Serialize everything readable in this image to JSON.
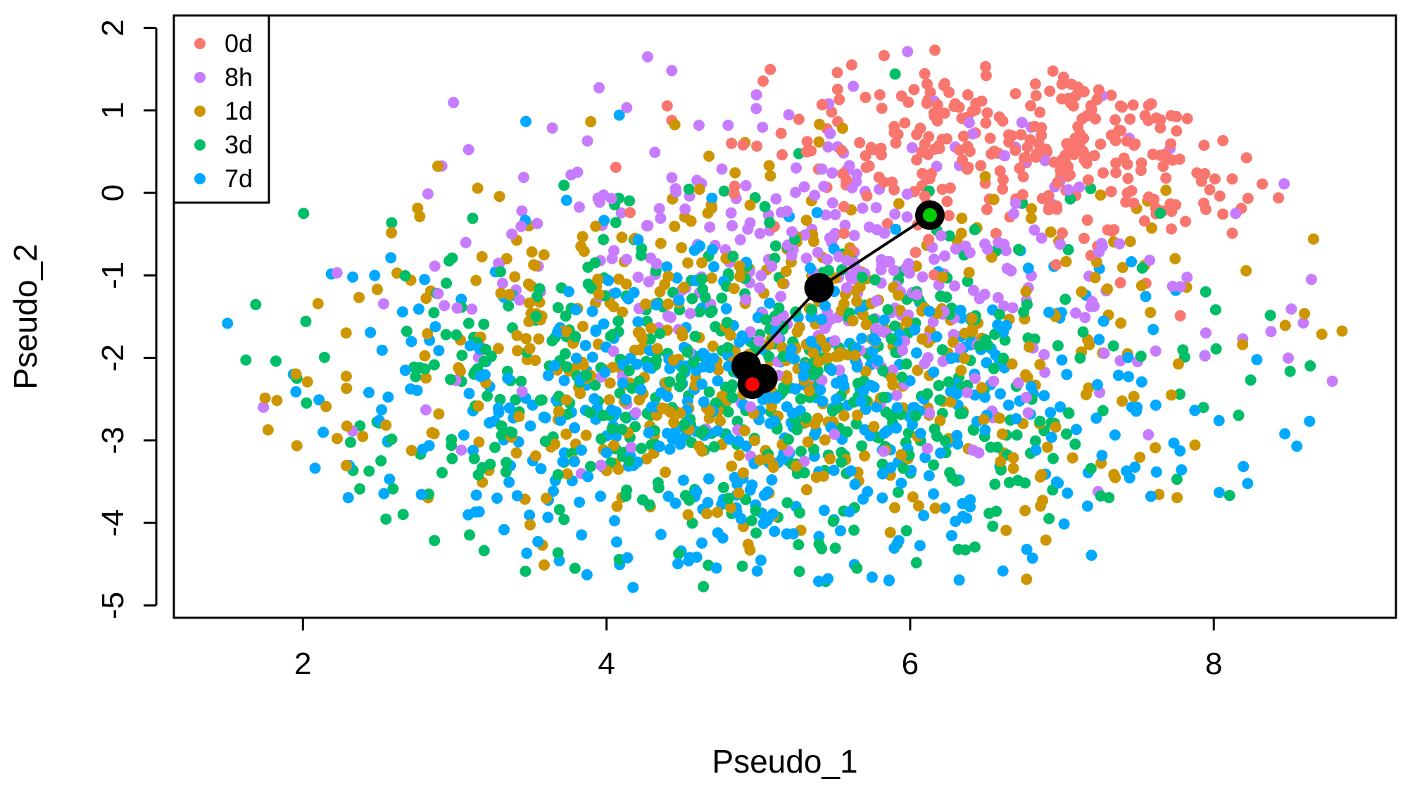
{
  "chart_data": {
    "type": "scatter",
    "title": "",
    "xlabel": "Pseudo_1",
    "ylabel": "Pseudo_2",
    "xlim": [
      1.15,
      9.2
    ],
    "ylim": [
      -5.15,
      2.15
    ],
    "x_ticks": [
      2,
      4,
      6,
      8
    ],
    "y_ticks": [
      -5,
      -4,
      -3,
      -2,
      -1,
      0,
      1,
      2
    ],
    "grid": false,
    "legend_position": "top-left",
    "series": [
      {
        "name": "0d",
        "color": "#F8766D",
        "x_center": 6.9,
        "y_center": 0.55,
        "x_spread": 1.25,
        "y_spread": 0.75,
        "n": 320
      },
      {
        "name": "8h",
        "color": "#C77CFF",
        "x_center": 5.6,
        "y_center": -0.9,
        "x_spread": 1.9,
        "y_spread": 1.45,
        "n": 380
      },
      {
        "name": "1d",
        "color": "#CD9600",
        "x_center": 5.0,
        "y_center": -2.0,
        "x_spread": 1.9,
        "y_spread": 1.45,
        "n": 520
      },
      {
        "name": "3d",
        "color": "#00BE67",
        "x_center": 4.9,
        "y_center": -2.3,
        "x_spread": 1.9,
        "y_spread": 1.45,
        "n": 560
      },
      {
        "name": "7d",
        "color": "#00A9FF",
        "x_center": 5.0,
        "y_center": -2.6,
        "x_spread": 1.95,
        "y_spread": 1.4,
        "n": 560
      }
    ],
    "trajectory": {
      "color": "#000000",
      "points": [
        {
          "x": 6.13,
          "y": -0.27
        },
        {
          "x": 5.4,
          "y": -1.15
        },
        {
          "x": 4.92,
          "y": -2.1
        },
        {
          "x": 5.03,
          "y": -2.25
        },
        {
          "x": 4.96,
          "y": -2.32
        }
      ],
      "start": {
        "x": 6.13,
        "y": -0.27,
        "color": "#00CC00"
      },
      "end": {
        "x": 4.96,
        "y": -2.32,
        "color": "#FF0000"
      }
    }
  }
}
